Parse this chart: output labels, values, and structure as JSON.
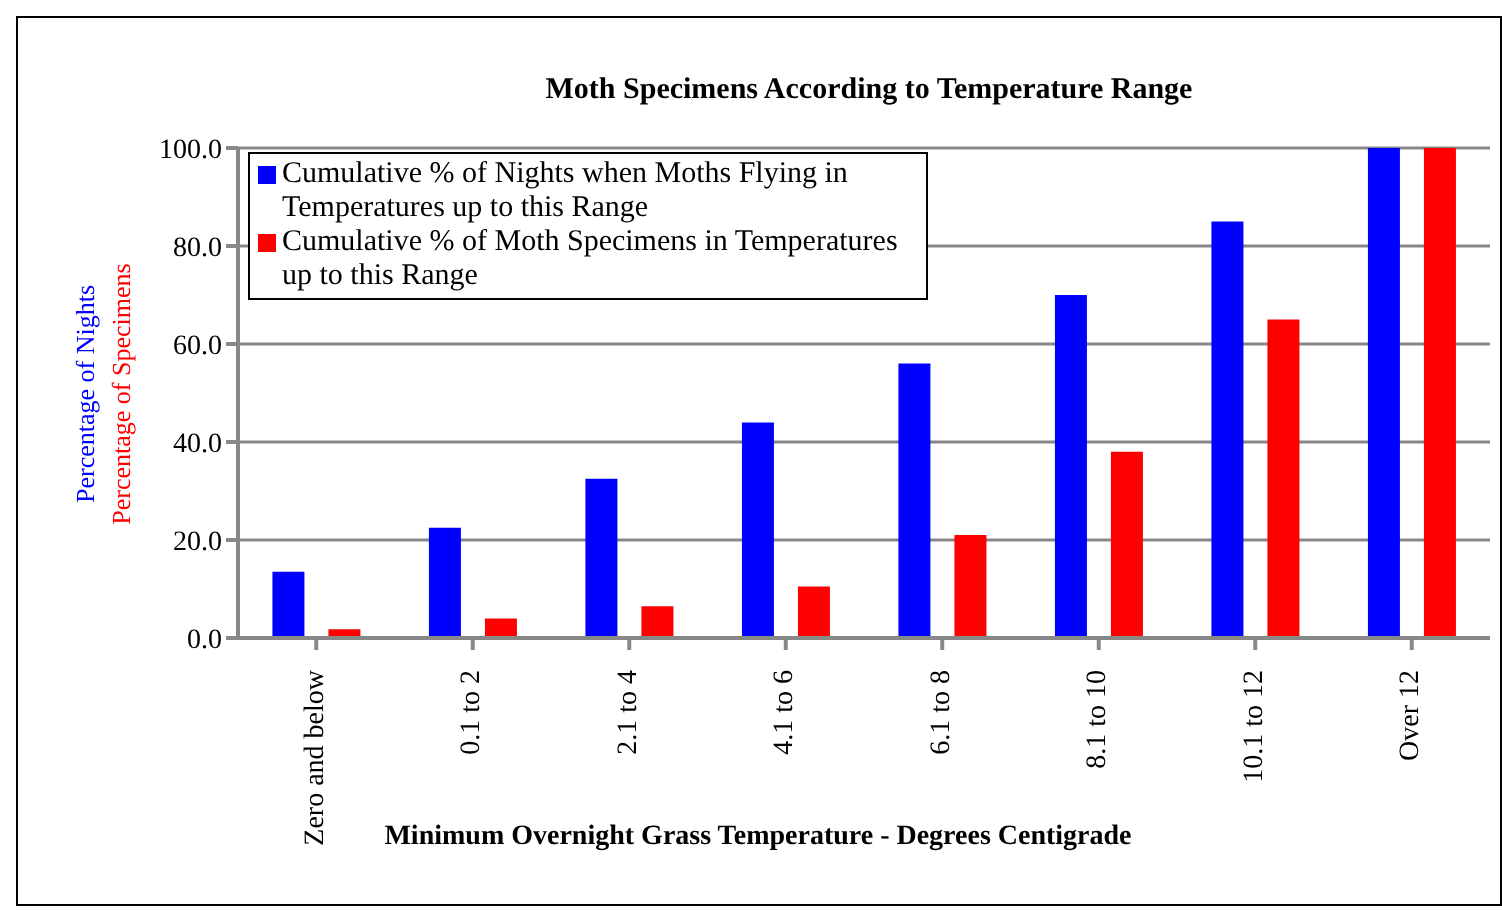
{
  "chart_data": {
    "type": "bar",
    "title": "Moth Specimens According to Temperature Range",
    "xlabel": "Minimum Overnight Grass Temperature - Degrees Centigrade",
    "ylabel": "Percentage of Nights",
    "y2label": "Percentage of Specimens",
    "categories": [
      "Zero and below",
      "0.1 to 2",
      "2.1 to 4",
      "4.1 to 6",
      "6.1 to 8",
      "8.1 to 10",
      "10.1 to 12",
      "Over 12"
    ],
    "series": [
      {
        "name": "Cumulative % of Nights when Moths Flying in Temperatures up to this Range",
        "color": "#0000ff",
        "values": [
          13.5,
          22.5,
          32.5,
          44,
          56,
          70,
          85,
          100
        ]
      },
      {
        "name": "Cumulative % of Moth Specimens in Temperatures up to this Range",
        "color": "#ff0000",
        "values": [
          1.8,
          4,
          6.5,
          10.5,
          21,
          38,
          65,
          100
        ]
      }
    ],
    "ylim": [
      0,
      100
    ],
    "yticks": [
      {
        "value": 0,
        "label": "0.0"
      },
      {
        "value": 20,
        "label": "20.0"
      },
      {
        "value": 40,
        "label": "40.0"
      },
      {
        "value": 60,
        "label": "60.0"
      },
      {
        "value": 80,
        "label": "80.0"
      },
      {
        "value": 100,
        "label": "100.0"
      }
    ],
    "grid": "y",
    "legend": "top left"
  }
}
